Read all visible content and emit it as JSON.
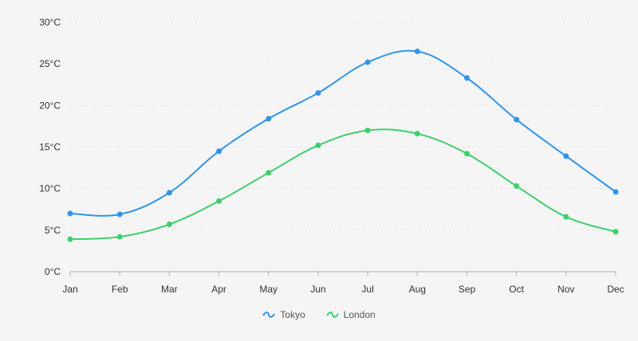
{
  "chart_data": {
    "type": "line",
    "categories": [
      "Jan",
      "Feb",
      "Mar",
      "Apr",
      "May",
      "Jun",
      "Jul",
      "Aug",
      "Sep",
      "Oct",
      "Nov",
      "Dec"
    ],
    "series": [
      {
        "name": "Tokyo",
        "color": "#2f95ec",
        "values": [
          7.0,
          6.9,
          9.5,
          14.5,
          18.4,
          21.5,
          25.2,
          26.5,
          23.3,
          18.3,
          13.9,
          9.6
        ]
      },
      {
        "name": "London",
        "color": "#3dcf6c",
        "values": [
          3.9,
          4.2,
          5.7,
          8.5,
          11.9,
          15.2,
          17.0,
          16.6,
          14.2,
          10.3,
          6.6,
          4.8
        ]
      }
    ],
    "ylim": [
      0,
      30
    ],
    "yticks": [
      0,
      5,
      10,
      15,
      20,
      25,
      30
    ],
    "ytick_suffix": "°C",
    "grid": true,
    "smooth": true,
    "legend_placement": "bottom-center"
  }
}
